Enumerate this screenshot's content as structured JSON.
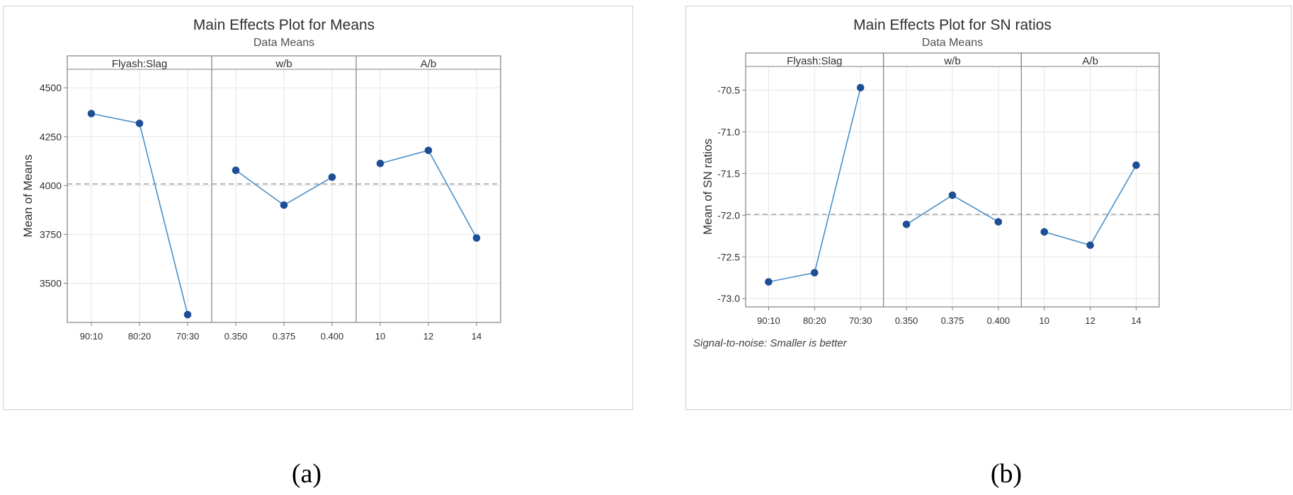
{
  "chart_data": [
    {
      "type": "line",
      "title": "Main Effects Plot for Means",
      "subtitle": "Data Means",
      "ylabel": "Mean of Means",
      "footnote": "",
      "ylim": [
        3300,
        4580
      ],
      "yticks": [
        3500,
        3750,
        4000,
        4250,
        4500
      ],
      "ytick_labels": [
        "3500",
        "3750",
        "4000",
        "4250",
        "4500"
      ],
      "reference_line": 4008,
      "grid": true,
      "colors": {
        "line": "#4a90c8",
        "marker": "#1f4e96",
        "reference": "#a8a8a8"
      },
      "panels": [
        {
          "factor": "Flyash:Slag",
          "categories": [
            "90:10",
            "80:20",
            "70:30"
          ],
          "values": [
            4368,
            4318,
            3340
          ]
        },
        {
          "factor": "w/b",
          "categories": [
            "0.350",
            "0.375",
            "0.400"
          ],
          "values": [
            4078,
            3900,
            4043
          ]
        },
        {
          "factor": "A/b",
          "categories": [
            "10",
            "12",
            "14"
          ],
          "values": [
            4113,
            4180,
            3732
          ]
        }
      ]
    },
    {
      "type": "line",
      "title": "Main Effects Plot for SN ratios",
      "subtitle": "Data Means",
      "ylabel": "Mean of SN ratios",
      "footnote": "Signal-to-noise: Smaller is better",
      "ylim": [
        -73.1,
        -70.25
      ],
      "yticks": [
        -73.0,
        -72.5,
        -72.0,
        -71.5,
        -71.0,
        -70.5
      ],
      "ytick_labels": [
        "-73.0",
        "-72.5",
        "-72.0",
        "-71.5",
        "-71.0",
        "-70.5"
      ],
      "reference_line": -71.99,
      "grid": true,
      "colors": {
        "line": "#4a90c8",
        "marker": "#1f4e96",
        "reference": "#a8a8a8"
      },
      "panels": [
        {
          "factor": "Flyash:Slag",
          "categories": [
            "90:10",
            "80:20",
            "70:30"
          ],
          "values": [
            -72.8,
            -72.69,
            -70.47
          ]
        },
        {
          "factor": "w/b",
          "categories": [
            "0.350",
            "0.375",
            "0.400"
          ],
          "values": [
            -72.11,
            -71.76,
            -72.08
          ]
        },
        {
          "factor": "A/b",
          "categories": [
            "10",
            "12",
            "14"
          ],
          "values": [
            -72.2,
            -72.36,
            -71.4
          ]
        }
      ]
    }
  ],
  "captions": [
    "(a)",
    "(b)"
  ]
}
